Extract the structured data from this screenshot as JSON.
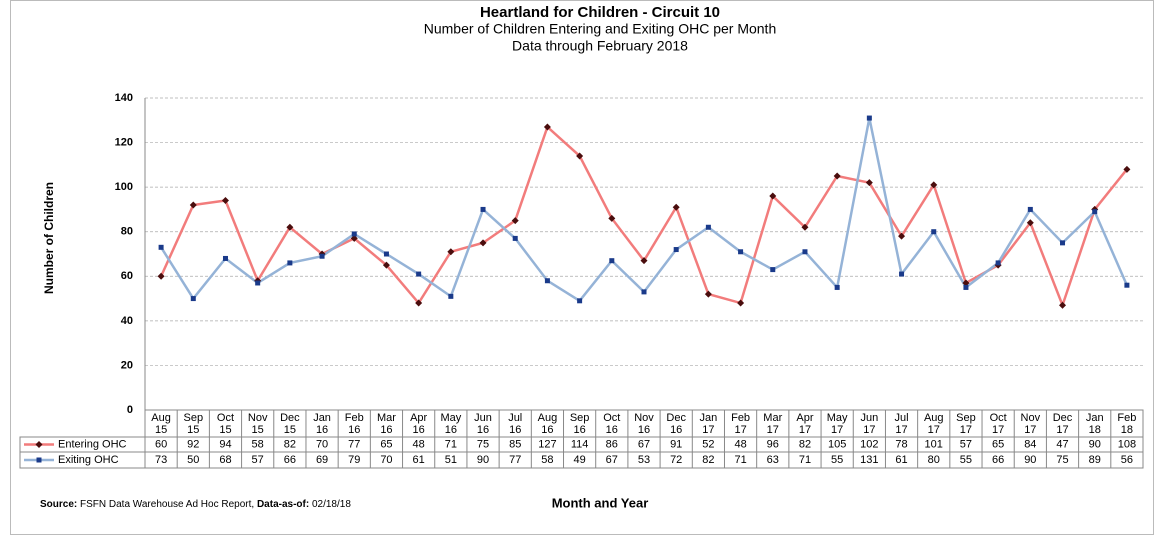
{
  "chart_data": {
    "type": "line",
    "title": "Heartland for Children - Circuit 10",
    "subtitle": "Number of Children Entering and Exiting OHC per Month",
    "subtitle2": "Data through February 2018",
    "y_label": "Number of Children",
    "x_label": "Month and Year",
    "source_label": "Source:",
    "source": "FSFN Data Warehouse Ad Hoc Report,",
    "data_as_of_label": "Data-as-of:",
    "data_as_of": "02/18/18",
    "categories": [
      "Aug 15",
      "Sep 15",
      "Oct 15",
      "Nov 15",
      "Dec 15",
      "Jan 16",
      "Feb 16",
      "Mar 16",
      "Apr 16",
      "May 16",
      "Jun 16",
      "Jul 16",
      "Aug 16",
      "Sep 16",
      "Oct 16",
      "Nov 16",
      "Dec 16",
      "Jan 17",
      "Feb 17",
      "Mar 17",
      "Apr 17",
      "May 17",
      "Jun 17",
      "Jul 17",
      "Aug 17",
      "Sep 17",
      "Oct 17",
      "Nov 17",
      "Dec 17",
      "Jan 18",
      "Feb 18"
    ],
    "series": [
      {
        "name": "Entering OHC",
        "color": "#f27c7c",
        "marker_color": "#4a0d0d",
        "marker": "diamond",
        "values": [
          60,
          92,
          94,
          58,
          82,
          70,
          77,
          65,
          48,
          71,
          75,
          85,
          127,
          114,
          86,
          67,
          91,
          52,
          48,
          96,
          82,
          105,
          102,
          78,
          101,
          57,
          65,
          84,
          47,
          90,
          108
        ]
      },
      {
        "name": "Exiting OHC",
        "color": "#95b3d7",
        "marker_color": "#1a3a8a",
        "marker": "square",
        "values": [
          73,
          50,
          68,
          57,
          66,
          69,
          79,
          70,
          61,
          51,
          90,
          77,
          58,
          49,
          67,
          53,
          72,
          82,
          71,
          63,
          71,
          55,
          131,
          61,
          80,
          55,
          66,
          90,
          75,
          89,
          56
        ]
      }
    ],
    "ylim": [
      0,
      140
    ],
    "yticks": [
      0,
      20,
      40,
      60,
      80,
      100,
      120,
      140
    ],
    "grid": true
  }
}
